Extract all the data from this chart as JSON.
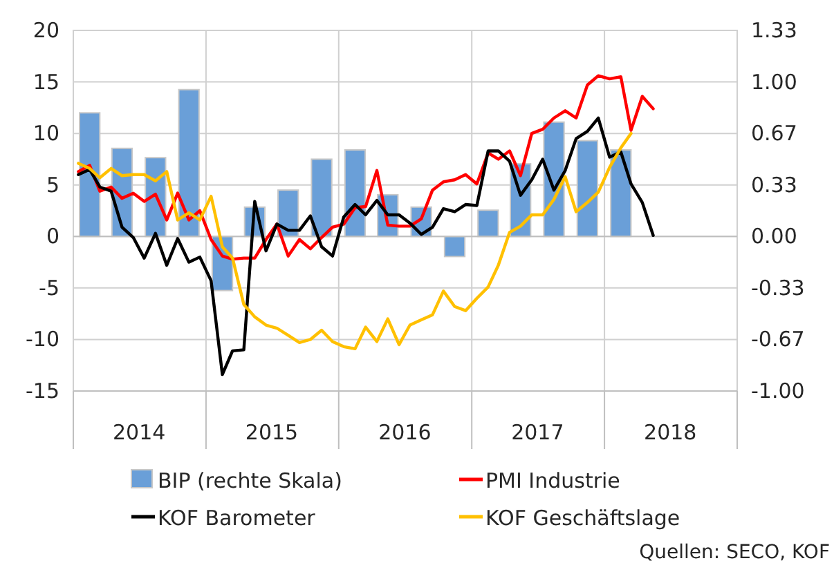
{
  "chart_data": {
    "type": "line",
    "x": [
      "2014-01-15",
      "2014-02-15",
      "2014-03-15",
      "2014-04-15",
      "2014-05-15",
      "2014-06-15",
      "2014-07-15",
      "2014-08-15",
      "2014-09-15",
      "2014-10-15",
      "2014-11-15",
      "2014-12-15",
      "2015-01-15",
      "2015-02-15",
      "2015-03-15",
      "2015-04-15",
      "2015-05-15",
      "2015-06-15",
      "2015-07-15",
      "2015-08-15",
      "2015-09-15",
      "2015-10-15",
      "2015-11-15",
      "2015-12-15",
      "2016-01-15",
      "2016-02-15",
      "2016-03-15",
      "2016-04-15",
      "2016-05-15",
      "2016-06-15",
      "2016-07-15",
      "2016-08-15",
      "2016-09-15",
      "2016-10-15",
      "2016-11-15",
      "2016-12-15",
      "2017-01-15",
      "2017-02-15",
      "2017-03-15",
      "2017-04-15",
      "2017-05-15",
      "2017-06-15",
      "2017-07-15",
      "2017-08-15",
      "2017-09-15",
      "2017-10-15",
      "2017-11-15",
      "2017-12-15",
      "2018-01-15",
      "2018-02-15",
      "2018-03-15",
      "2018-04-15",
      "2018-05-15"
    ],
    "series": [
      {
        "name": "BIP (rechte Skala)",
        "type": "bar",
        "axis": "y2",
        "color": "#6a9fd8",
        "x": [
          "2014-02-15",
          "2014-05-15",
          "2014-08-15",
          "2014-11-15",
          "2015-02-15",
          "2015-05-15",
          "2015-08-15",
          "2015-11-15",
          "2016-02-15",
          "2016-05-15",
          "2016-08-15",
          "2016-11-15",
          "2017-02-15",
          "2017-05-15",
          "2017-08-15",
          "2017-11-15",
          "2018-02-15"
        ],
        "values": [
          0.8,
          0.57,
          0.51,
          0.95,
          -0.35,
          0.19,
          0.3,
          0.5,
          0.56,
          0.27,
          0.19,
          -0.13,
          0.17,
          0.47,
          0.74,
          0.62,
          0.56
        ]
      },
      {
        "name": "PMI Industrie",
        "color": "#ff0000",
        "values": [
          6.3,
          6.9,
          4.4,
          4.8,
          3.7,
          4.2,
          3.4,
          4.1,
          1.6,
          4.2,
          1.6,
          2.5,
          -0.3,
          -1.9,
          -2.2,
          -2.1,
          -2.1,
          -0.3,
          1.2,
          -1.9,
          -0.3,
          -1.2,
          -0.1,
          0.9,
          1.2,
          2.8,
          2.9,
          6.4,
          1.1,
          1.0,
          1.0,
          1.7,
          4.5,
          5.3,
          5.5,
          6.0,
          5.1,
          8.1,
          7.5,
          8.3,
          5.9,
          10.0,
          10.4,
          11.5,
          12.2,
          11.5,
          14.7,
          15.6,
          15.3,
          15.5,
          10.3,
          13.6,
          12.4
        ]
      },
      {
        "name": "KOF Barometer",
        "color": "#000000",
        "values": [
          6.0,
          6.5,
          4.8,
          4.4,
          0.9,
          -0.1,
          -2.1,
          0.3,
          -2.8,
          -0.2,
          -2.5,
          -2.0,
          -4.3,
          -13.4,
          -11.1,
          -11.0,
          3.4,
          -1.4,
          1.2,
          0.6,
          0.6,
          2.0,
          -1.0,
          -1.9,
          1.9,
          3.1,
          2.1,
          3.5,
          2.1,
          2.1,
          1.3,
          0.2,
          0.9,
          2.7,
          2.4,
          3.1,
          3.0,
          8.3,
          8.3,
          7.3,
          4.0,
          5.5,
          7.5,
          4.5,
          6.4,
          9.5,
          10.2,
          11.5,
          7.7,
          8.2,
          5.1,
          3.3,
          0.1
        ]
      },
      {
        "name": "KOF Geschäftslage",
        "color": "#ffc000",
        "values": [
          7.1,
          6.6,
          5.7,
          6.6,
          5.9,
          6.0,
          6.0,
          5.4,
          6.3,
          1.6,
          2.3,
          1.6,
          3.9,
          -1.0,
          -2.1,
          -6.6,
          -7.8,
          -8.6,
          -8.9,
          -9.6,
          -10.3,
          -10.0,
          -9.1,
          -10.2,
          -10.7,
          -10.9,
          -8.8,
          -10.2,
          -8.0,
          -10.5,
          -8.6,
          -8.1,
          -7.6,
          -5.3,
          -6.8,
          -7.2,
          -6.0,
          -4.9,
          -2.8,
          0.4,
          1.0,
          2.1,
          2.1,
          3.6,
          5.8,
          2.4,
          3.3,
          4.3,
          6.7,
          8.6,
          10.0,
          null,
          null
        ]
      }
    ],
    "xlim": [
      "2014-01-01",
      "2019-01-01"
    ],
    "xticks": [
      {
        "value": "2014-01-01",
        "label": null
      },
      {
        "value": "2014-07-01",
        "label": "2014"
      },
      {
        "value": "2015-01-01",
        "label": null
      },
      {
        "value": "2015-07-01",
        "label": "2015"
      },
      {
        "value": "2016-01-01",
        "label": null
      },
      {
        "value": "2016-07-01",
        "label": "2016"
      },
      {
        "value": "2017-01-01",
        "label": null
      },
      {
        "value": "2017-07-01",
        "label": "2017"
      },
      {
        "value": "2018-01-01",
        "label": null
      },
      {
        "value": "2018-07-01",
        "label": "2018"
      },
      {
        "value": "2019-01-01",
        "label": null
      }
    ],
    "ylim": [
      -15,
      20
    ],
    "yticks": [
      -15,
      -10,
      -5,
      0,
      5,
      10,
      15,
      20
    ],
    "y2lim": [
      -1,
      1.3333
    ],
    "y2ticks": [
      {
        "value": -1,
        "label": "-1.00"
      },
      {
        "value": -0.6667,
        "label": "-0.67"
      },
      {
        "value": -0.3333,
        "label": "-0.33"
      },
      {
        "value": 0,
        "label": "0.00"
      },
      {
        "value": 0.3333,
        "label": "0.33"
      },
      {
        "value": 0.6667,
        "label": "0.67"
      },
      {
        "value": 1,
        "label": "1.00"
      },
      {
        "value": 1.3333,
        "label": "1.33"
      }
    ],
    "grid": true,
    "legend": "bottom",
    "annotations": [
      "Quellen: SECO, KOF"
    ]
  }
}
